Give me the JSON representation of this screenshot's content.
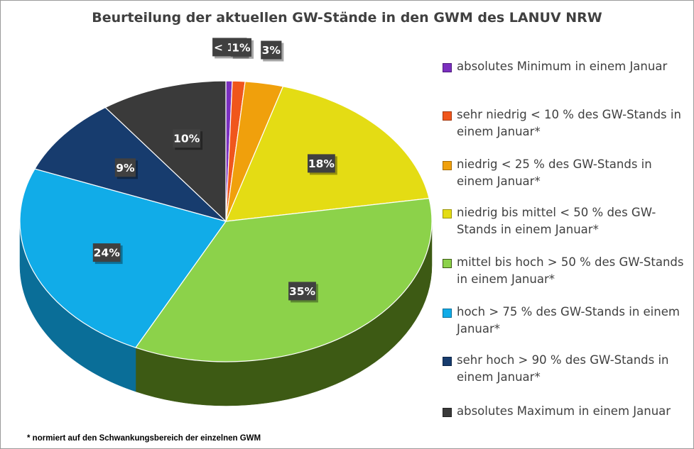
{
  "chart_data": {
    "type": "pie",
    "title": "Beurteilung der aktuellen GW-Stände in den GWM des LANUV NRW",
    "categories": [
      "absolutes Minimum  in einem Januar",
      "sehr niedrig  < 10 % des GW-Stands in einem Januar*",
      "niedrig   < 25 % des GW-Stands in einem Januar*",
      "niedrig bis mittel  < 50 % des GW-Stands in einem Januar*",
      "mittel bis hoch  > 50 % des GW-Stands in einem Januar*",
      "hoch  > 75 % des GW-Stands in einem Januar*",
      "sehr hoch  > 90 % des GW-Stands in einem Januar*",
      "absolutes Maximum  in einem Januar"
    ],
    "values": [
      0.5,
      1,
      3,
      18,
      35,
      24,
      9,
      10
    ],
    "data_labels": [
      "< 1%",
      "1%",
      "3%",
      "18%",
      "35%",
      "24%",
      "9%",
      "10%"
    ],
    "colors": [
      "#7b2fbf",
      "#f0561c",
      "#f0a00c",
      "#e4dc14",
      "#8cd24a",
      "#11ace8",
      "#173c6e",
      "#3a3a3a"
    ],
    "side_colors": [
      "#4e1c7c",
      "#a3380f",
      "#a56c06",
      "#9a940a",
      "#3d5a14",
      "#0a6e98",
      "#0d2546",
      "#222222"
    ],
    "legend_position": "right",
    "footnote": "* normiert auf den Schwankungsbereich der einzelnen GWM"
  }
}
